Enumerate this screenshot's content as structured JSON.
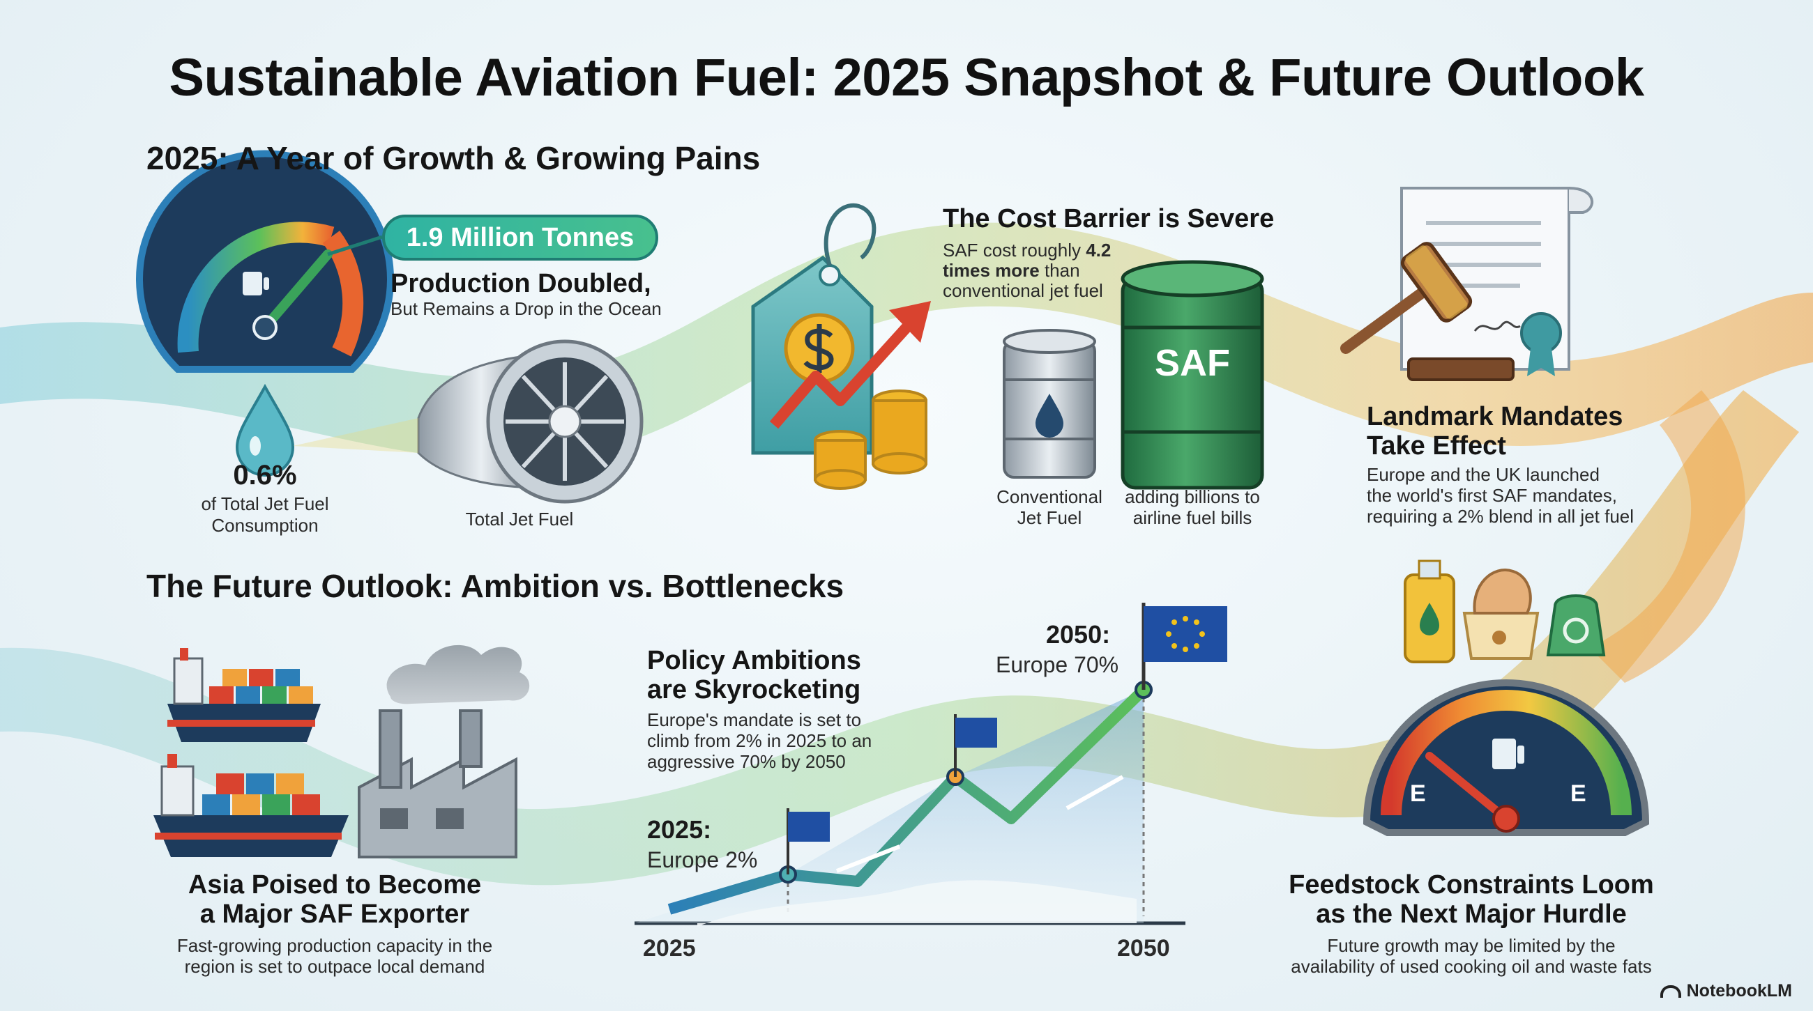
{
  "title": "Sustainable Aviation Fuel: 2025 Snapshot & Future Outlook",
  "section_2025": {
    "heading": "2025: A Year of Growth & Growing Pains",
    "production": {
      "badge": "1.9 Million Tonnes",
      "title": "Production Doubled,",
      "subtitle": "But Remains a Drop in the Ocean",
      "share_value": "0.6%",
      "share_label_1": "of Total Jet Fuel",
      "share_label_2": "Consumption",
      "engine_label": "Total Jet Fuel"
    },
    "cost": {
      "title": "The Cost Barrier is Severe",
      "line_1": "SAF cost roughly ",
      "line_1_bold": "4.2",
      "line_2_bold": "times more",
      "line_2": " than",
      "line_3": "conventional jet fuel",
      "barrel_small_label_1": "Conventional",
      "barrel_small_label_2": "Jet Fuel",
      "barrel_big_text": "SAF",
      "barrel_big_label_1": "adding billions to",
      "barrel_big_label_2": "airline fuel bills"
    },
    "mandates": {
      "title_1": "Landmark Mandates",
      "title_2": "Take Effect",
      "body_1": "Europe and the UK launched",
      "body_2": "the world's first SAF mandates,",
      "body_3": "requiring a 2% blend in all jet fuel"
    }
  },
  "section_future": {
    "heading": "The Future Outlook: Ambition vs. Bottlenecks",
    "asia": {
      "title_1": "Asia Poised to Become",
      "title_2": "a Major SAF Exporter",
      "body_1": "Fast-growing production capacity in the",
      "body_2": "region is set to outpace local demand"
    },
    "policy": {
      "title_1": "Policy Ambitions",
      "title_2": "are Skyrocketing",
      "body_1": "Europe's mandate is set to",
      "body_2": "climb from 2% in 2025 to an",
      "body_3": "aggressive 70% by 2050",
      "start_year_label": "2025:",
      "start_value_label": "Europe 2%",
      "end_year_label": "2050:",
      "end_value_label": "Europe 70%",
      "axis_start": "2025",
      "axis_end": "2050"
    },
    "feedstock": {
      "title_1": "Feedstock Constraints Loom",
      "title_2": "as the Next Major Hurdle",
      "body_1": "Future growth may be limited by the",
      "body_2": "availability of used cooking oil and waste fats",
      "gauge_left_letter": "E",
      "gauge_right_letter": "E"
    }
  },
  "brand": "NotebookLM",
  "colors": {
    "teal": "#2fb3a3",
    "green": "#3e9b4f",
    "orange": "#f0a23b",
    "red": "#d9432f",
    "navy": "#1d3b5c",
    "eu_blue": "#1f4fa3"
  }
}
